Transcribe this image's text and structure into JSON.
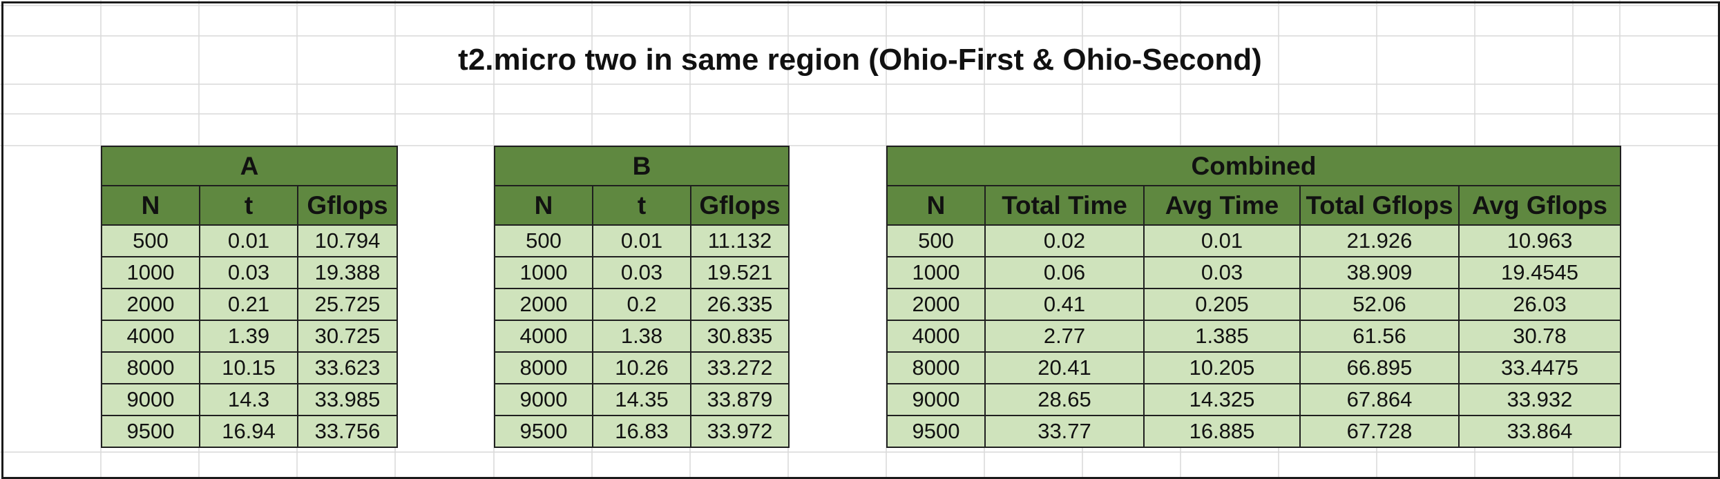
{
  "title": "t2.micro two in same region (Ohio-First & Ohio-Second)",
  "colors": {
    "header_fill": "#5f8840",
    "cell_fill": "#cfe3bc",
    "grid_line": "#d9d9d9",
    "border": "#1f1f1f"
  },
  "tables": [
    {
      "label": "A",
      "columns": [
        "N",
        "t",
        "Gflops"
      ],
      "rows": [
        [
          "500",
          "0.01",
          "10.794"
        ],
        [
          "1000",
          "0.03",
          "19.388"
        ],
        [
          "2000",
          "0.21",
          "25.725"
        ],
        [
          "4000",
          "1.39",
          "30.725"
        ],
        [
          "8000",
          "10.15",
          "33.623"
        ],
        [
          "9000",
          "14.3",
          "33.985"
        ],
        [
          "9500",
          "16.94",
          "33.756"
        ]
      ]
    },
    {
      "label": "B",
      "columns": [
        "N",
        "t",
        "Gflops"
      ],
      "rows": [
        [
          "500",
          "0.01",
          "11.132"
        ],
        [
          "1000",
          "0.03",
          "19.521"
        ],
        [
          "2000",
          "0.2",
          "26.335"
        ],
        [
          "4000",
          "1.38",
          "30.835"
        ],
        [
          "8000",
          "10.26",
          "33.272"
        ],
        [
          "9000",
          "14.35",
          "33.879"
        ],
        [
          "9500",
          "16.83",
          "33.972"
        ]
      ]
    },
    {
      "label": "Combined",
      "columns": [
        "N",
        "Total Time",
        "Avg Time",
        "Total Gflops",
        "Avg Gflops"
      ],
      "rows": [
        [
          "500",
          "0.02",
          "0.01",
          "21.926",
          "10.963"
        ],
        [
          "1000",
          "0.06",
          "0.03",
          "38.909",
          "19.4545"
        ],
        [
          "2000",
          "0.41",
          "0.205",
          "52.06",
          "26.03"
        ],
        [
          "4000",
          "2.77",
          "1.385",
          "61.56",
          "30.78"
        ],
        [
          "8000",
          "20.41",
          "10.205",
          "66.895",
          "33.4475"
        ],
        [
          "9000",
          "28.65",
          "14.325",
          "67.864",
          "33.932"
        ],
        [
          "9500",
          "33.77",
          "16.885",
          "67.728",
          "33.864"
        ]
      ]
    }
  ]
}
